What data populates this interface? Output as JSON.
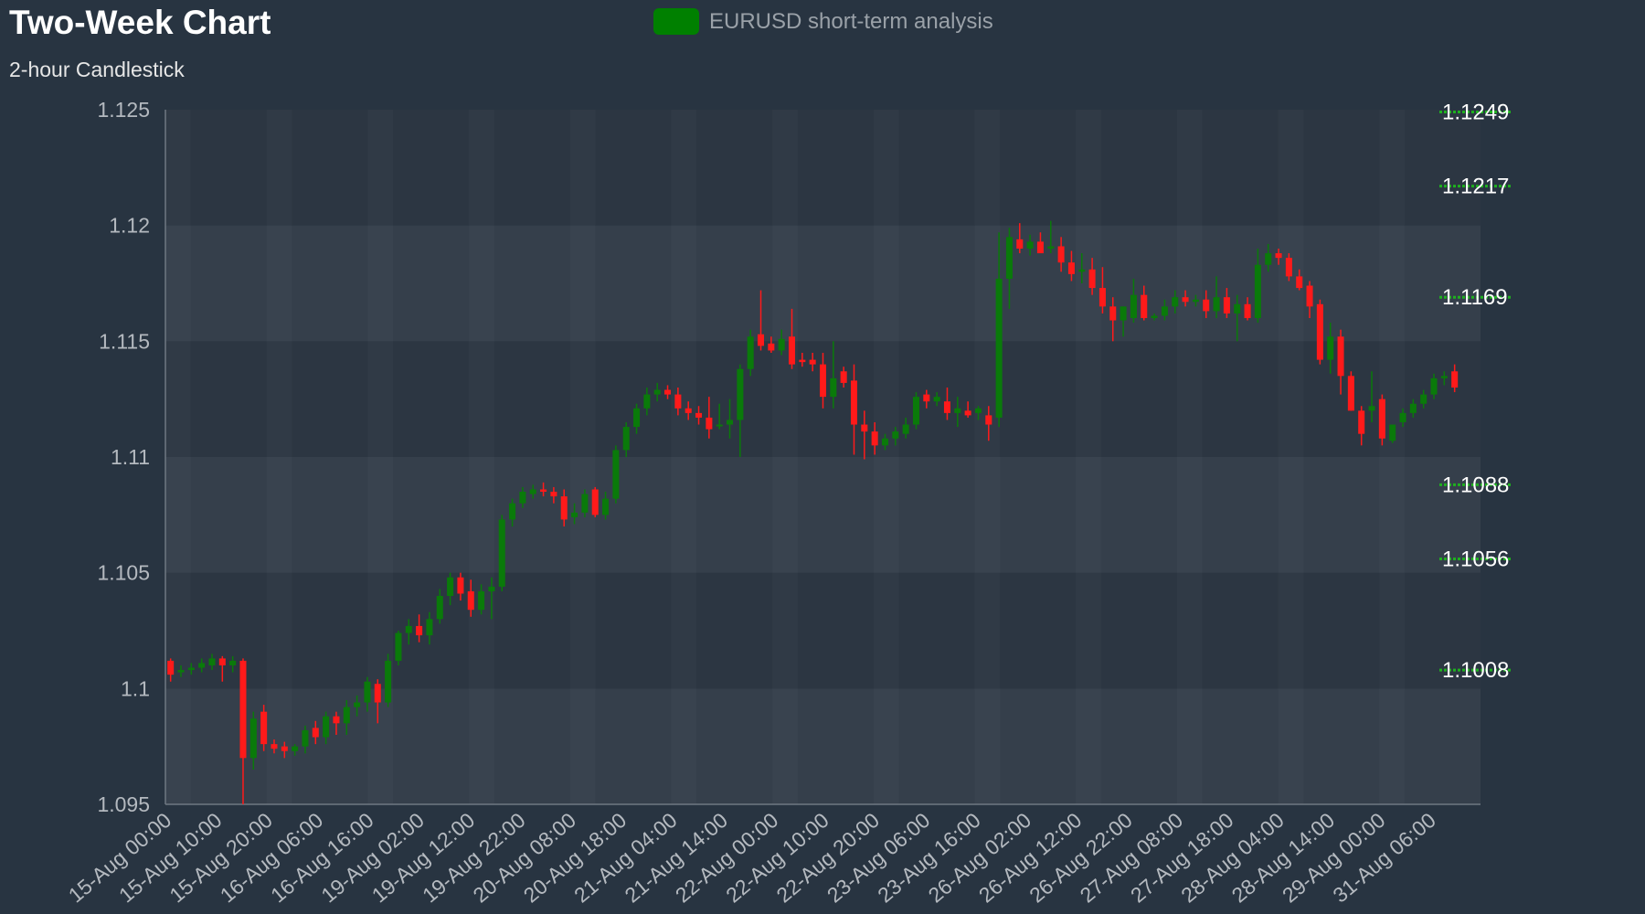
{
  "header": {
    "title": "Two-Week Chart",
    "subtitle": "2-hour Candlestick"
  },
  "legend": {
    "label": "EURUSD short-term analysis",
    "color": "#008000"
  },
  "colors": {
    "up": "#0a7a0a",
    "down": "#ff1a1a",
    "level_line": "#1fb01f",
    "level_text": "#ffffff",
    "axis_text": "#b4b9bf",
    "band_light": "#353f4b",
    "band_dark": "#2c3642"
  },
  "chart_data": {
    "type": "candlestick",
    "title": "Two-Week Chart",
    "subtitle": "2-hour Candlestick",
    "series_name": "EURUSD short-term analysis",
    "ylim": [
      1.095,
      1.125
    ],
    "y_ticks": [
      "1.095",
      "1.1",
      "1.105",
      "1.11",
      "1.115",
      "1.12",
      "1.125"
    ],
    "x_tick_labels": [
      "15-Aug 00:00",
      "15-Aug 10:00",
      "15-Aug 20:00",
      "16-Aug 06:00",
      "16-Aug 16:00",
      "19-Aug 02:00",
      "19-Aug 12:00",
      "19-Aug 22:00",
      "20-Aug 08:00",
      "20-Aug 18:00",
      "21-Aug 04:00",
      "21-Aug 14:00",
      "22-Aug 00:00",
      "22-Aug 10:00",
      "22-Aug 20:00",
      "23-Aug 06:00",
      "23-Aug 16:00",
      "26-Aug 02:00",
      "26-Aug 12:00",
      "26-Aug 22:00",
      "27-Aug 08:00",
      "27-Aug 18:00",
      "28-Aug 04:00",
      "28-Aug 14:00",
      "29-Aug 00:00",
      "31-Aug 06:00"
    ],
    "grid": true,
    "levels": [
      {
        "value": 1.1249,
        "label": "1.1249"
      },
      {
        "value": 1.1217,
        "label": "1.1217"
      },
      {
        "value": 1.1169,
        "label": "1.1169"
      },
      {
        "value": 1.1088,
        "label": "1.1088"
      },
      {
        "value": 1.1056,
        "label": "1.1056"
      },
      {
        "value": 1.1008,
        "label": "1.1008"
      }
    ],
    "ohlc": [
      [
        1.1012,
        1.1013,
        1.1003,
        1.1006
      ],
      [
        1.1007,
        1.101,
        1.1005,
        1.1008
      ],
      [
        1.1008,
        1.1011,
        1.1006,
        1.1009
      ],
      [
        1.1009,
        1.1013,
        1.1007,
        1.1011
      ],
      [
        1.101,
        1.1015,
        1.1008,
        1.1013
      ],
      [
        1.1013,
        1.1014,
        1.1003,
        1.101
      ],
      [
        1.101,
        1.1014,
        1.1007,
        1.1012
      ],
      [
        1.1012,
        1.1013,
        1.095,
        1.097
      ],
      [
        1.097,
        1.099,
        1.0965,
        1.0987
      ],
      [
        1.099,
        1.0993,
        1.0973,
        1.0976
      ],
      [
        1.0976,
        1.0978,
        1.0972,
        1.0974
      ],
      [
        1.0975,
        1.0977,
        1.097,
        1.0973
      ],
      [
        1.0973,
        1.0976,
        1.0971,
        1.0975
      ],
      [
        1.0975,
        1.0984,
        1.0972,
        1.0982
      ],
      [
        1.0983,
        1.0986,
        1.0976,
        1.0979
      ],
      [
        1.0979,
        1.099,
        1.0976,
        1.0988
      ],
      [
        1.0988,
        1.099,
        1.098,
        1.0985
      ],
      [
        1.0985,
        1.0995,
        1.098,
        1.0992
      ],
      [
        1.0992,
        1.0997,
        1.0988,
        1.0994
      ],
      [
        1.0994,
        1.1005,
        1.099,
        1.1003
      ],
      [
        1.1002,
        1.1004,
        1.0985,
        1.0994
      ],
      [
        1.0994,
        1.1015,
        1.0992,
        1.1012
      ],
      [
        1.1012,
        1.1025,
        1.101,
        1.1024
      ],
      [
        1.1024,
        1.103,
        1.1019,
        1.1027
      ],
      [
        1.1027,
        1.1032,
        1.102,
        1.1023
      ],
      [
        1.1023,
        1.1033,
        1.1019,
        1.103
      ],
      [
        1.103,
        1.1043,
        1.1028,
        1.104
      ],
      [
        1.104,
        1.105,
        1.1036,
        1.1048
      ],
      [
        1.1048,
        1.105,
        1.1038,
        1.1041
      ],
      [
        1.1042,
        1.1047,
        1.1031,
        1.1034
      ],
      [
        1.1034,
        1.1045,
        1.1032,
        1.1042
      ],
      [
        1.1042,
        1.1048,
        1.103,
        1.1044
      ],
      [
        1.1044,
        1.1075,
        1.1042,
        1.1073
      ],
      [
        1.1073,
        1.1082,
        1.107,
        1.108
      ],
      [
        1.108,
        1.1087,
        1.1078,
        1.1085
      ],
      [
        1.1084,
        1.1088,
        1.1082,
        1.1086
      ],
      [
        1.1086,
        1.1089,
        1.1083,
        1.1085
      ],
      [
        1.1085,
        1.1087,
        1.108,
        1.1083
      ],
      [
        1.1083,
        1.1086,
        1.107,
        1.1073
      ],
      [
        1.1074,
        1.108,
        1.1071,
        1.1076
      ],
      [
        1.1076,
        1.1086,
        1.1074,
        1.1084
      ],
      [
        1.1086,
        1.1087,
        1.1074,
        1.1075
      ],
      [
        1.1075,
        1.1085,
        1.1073,
        1.1082
      ],
      [
        1.1082,
        1.1105,
        1.108,
        1.1103
      ],
      [
        1.1103,
        1.1115,
        1.11,
        1.1113
      ],
      [
        1.1113,
        1.1123,
        1.111,
        1.1121
      ],
      [
        1.1121,
        1.113,
        1.1118,
        1.1127
      ],
      [
        1.1127,
        1.1132,
        1.1124,
        1.1129
      ],
      [
        1.1129,
        1.1131,
        1.1125,
        1.1127
      ],
      [
        1.1127,
        1.113,
        1.1118,
        1.1121
      ],
      [
        1.1121,
        1.1124,
        1.1116,
        1.1119
      ],
      [
        1.1119,
        1.1122,
        1.1114,
        1.1117
      ],
      [
        1.1117,
        1.1126,
        1.1108,
        1.1112
      ],
      [
        1.1114,
        1.1123,
        1.1112,
        1.1114
      ],
      [
        1.1114,
        1.1125,
        1.1108,
        1.1116
      ],
      [
        1.1116,
        1.114,
        1.11,
        1.1138
      ],
      [
        1.1138,
        1.1155,
        1.1135,
        1.1152
      ],
      [
        1.1153,
        1.1172,
        1.1146,
        1.1148
      ],
      [
        1.1149,
        1.1152,
        1.1145,
        1.1146
      ],
      [
        1.1146,
        1.1155,
        1.1144,
        1.1151
      ],
      [
        1.1152,
        1.1164,
        1.1138,
        1.114
      ],
      [
        1.1142,
        1.1145,
        1.1139,
        1.1141
      ],
      [
        1.1142,
        1.1145,
        1.1137,
        1.114
      ],
      [
        1.114,
        1.1145,
        1.1121,
        1.1126
      ],
      [
        1.1126,
        1.115,
        1.1121,
        1.1134
      ],
      [
        1.1137,
        1.1139,
        1.113,
        1.1132
      ],
      [
        1.1133,
        1.114,
        1.1101,
        1.1114
      ],
      [
        1.1114,
        1.112,
        1.1099,
        1.1111
      ],
      [
        1.1111,
        1.1115,
        1.1101,
        1.1105
      ],
      [
        1.1105,
        1.111,
        1.1103,
        1.1108
      ],
      [
        1.1108,
        1.1113,
        1.1105,
        1.1111
      ],
      [
        1.111,
        1.1117,
        1.1108,
        1.1114
      ],
      [
        1.1114,
        1.1128,
        1.1112,
        1.1126
      ],
      [
        1.1127,
        1.1129,
        1.1121,
        1.1124
      ],
      [
        1.1124,
        1.1128,
        1.1122,
        1.1126
      ],
      [
        1.1124,
        1.113,
        1.1116,
        1.1119
      ],
      [
        1.1119,
        1.1126,
        1.1113,
        1.1121
      ],
      [
        1.112,
        1.1124,
        1.1117,
        1.1118
      ],
      [
        1.1119,
        1.1122,
        1.1116,
        1.1121
      ],
      [
        1.1118,
        1.1122,
        1.1107,
        1.1114
      ],
      [
        1.1117,
        1.1197,
        1.1113,
        1.1177
      ],
      [
        1.1177,
        1.1199,
        1.1164,
        1.1195
      ],
      [
        1.1194,
        1.1201,
        1.1188,
        1.119
      ],
      [
        1.119,
        1.1196,
        1.1187,
        1.1193
      ],
      [
        1.1193,
        1.1197,
        1.1189,
        1.1188
      ],
      [
        1.119,
        1.1202,
        1.1188,
        1.1191
      ],
      [
        1.1191,
        1.1195,
        1.118,
        1.1184
      ],
      [
        1.1184,
        1.1189,
        1.1176,
        1.1179
      ],
      [
        1.118,
        1.1188,
        1.1175,
        1.1181
      ],
      [
        1.1181,
        1.1186,
        1.117,
        1.1173
      ],
      [
        1.1173,
        1.1182,
        1.1162,
        1.1165
      ],
      [
        1.1165,
        1.1169,
        1.115,
        1.1159
      ],
      [
        1.1159,
        1.1165,
        1.1152,
        1.1165
      ],
      [
        1.116,
        1.1177,
        1.1158,
        1.117
      ],
      [
        1.117,
        1.1174,
        1.1159,
        1.116
      ],
      [
        1.116,
        1.1162,
        1.1159,
        1.1161
      ],
      [
        1.1161,
        1.1168,
        1.1159,
        1.1165
      ],
      [
        1.1165,
        1.1172,
        1.1162,
        1.1169
      ],
      [
        1.1169,
        1.1172,
        1.1165,
        1.1167
      ],
      [
        1.1167,
        1.117,
        1.1165,
        1.1168
      ],
      [
        1.1168,
        1.1172,
        1.116,
        1.1163
      ],
      [
        1.1163,
        1.1178,
        1.116,
        1.1169
      ],
      [
        1.1169,
        1.1173,
        1.116,
        1.1162
      ],
      [
        1.1162,
        1.117,
        1.115,
        1.1166
      ],
      [
        1.1166,
        1.1169,
        1.1159,
        1.116
      ],
      [
        1.116,
        1.119,
        1.1158,
        1.1183
      ],
      [
        1.1183,
        1.1192,
        1.118,
        1.1188
      ],
      [
        1.1188,
        1.119,
        1.1183,
        1.1186
      ],
      [
        1.1186,
        1.1188,
        1.1176,
        1.1178
      ],
      [
        1.1178,
        1.1181,
        1.1172,
        1.1173
      ],
      [
        1.1174,
        1.1176,
        1.116,
        1.1165
      ],
      [
        1.1166,
        1.1168,
        1.114,
        1.1142
      ],
      [
        1.1142,
        1.1158,
        1.1136,
        1.1152
      ],
      [
        1.1152,
        1.1155,
        1.1127,
        1.1135
      ],
      [
        1.1135,
        1.1137,
        1.112,
        1.112
      ],
      [
        1.112,
        1.1122,
        1.1105,
        1.111
      ],
      [
        1.112,
        1.1137,
        1.1115,
        1.1122
      ],
      [
        1.1125,
        1.1127,
        1.1105,
        1.1108
      ],
      [
        1.1107,
        1.1112,
        1.1106,
        1.1114
      ],
      [
        1.1115,
        1.1121,
        1.1113,
        1.1119
      ],
      [
        1.1119,
        1.1125,
        1.1117,
        1.1123
      ],
      [
        1.1123,
        1.1129,
        1.1121,
        1.1127
      ],
      [
        1.1127,
        1.1136,
        1.1125,
        1.1134
      ],
      [
        1.1134,
        1.1137,
        1.1131,
        1.1135
      ],
      [
        1.1137,
        1.114,
        1.1128,
        1.113
      ]
    ]
  }
}
